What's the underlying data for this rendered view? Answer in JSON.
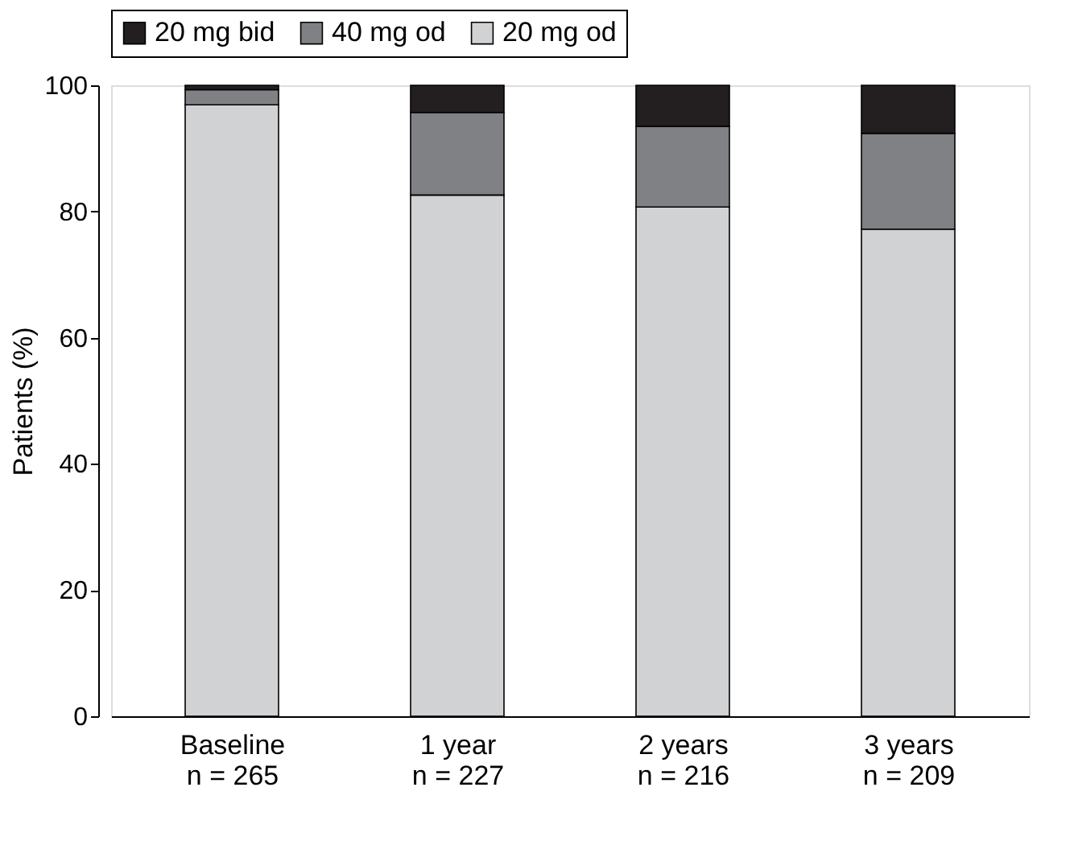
{
  "chart_data": {
    "type": "bar",
    "stacked": true,
    "ylabel": "Patients (%)",
    "categories": [
      "Baseline\nn = 265",
      "1 year\nn = 227",
      "2 years\nn = 216",
      "3 years\nn = 209"
    ],
    "series": [
      {
        "name": "20 mg od",
        "color": "#d1d2d4",
        "values": [
          96.9,
          82.6,
          80.7,
          77.2
        ]
      },
      {
        "name": "40 mg od",
        "color": "#808184",
        "values": [
          2.4,
          13.1,
          12.8,
          15.2
        ]
      },
      {
        "name": "20 mg bid",
        "color": "#231f20",
        "values": [
          0.7,
          4.3,
          6.5,
          7.6
        ]
      }
    ],
    "ylim": [
      0,
      100
    ],
    "yticks": [
      0,
      20,
      40,
      60,
      80,
      100
    ],
    "grid": false,
    "legend": "top"
  }
}
